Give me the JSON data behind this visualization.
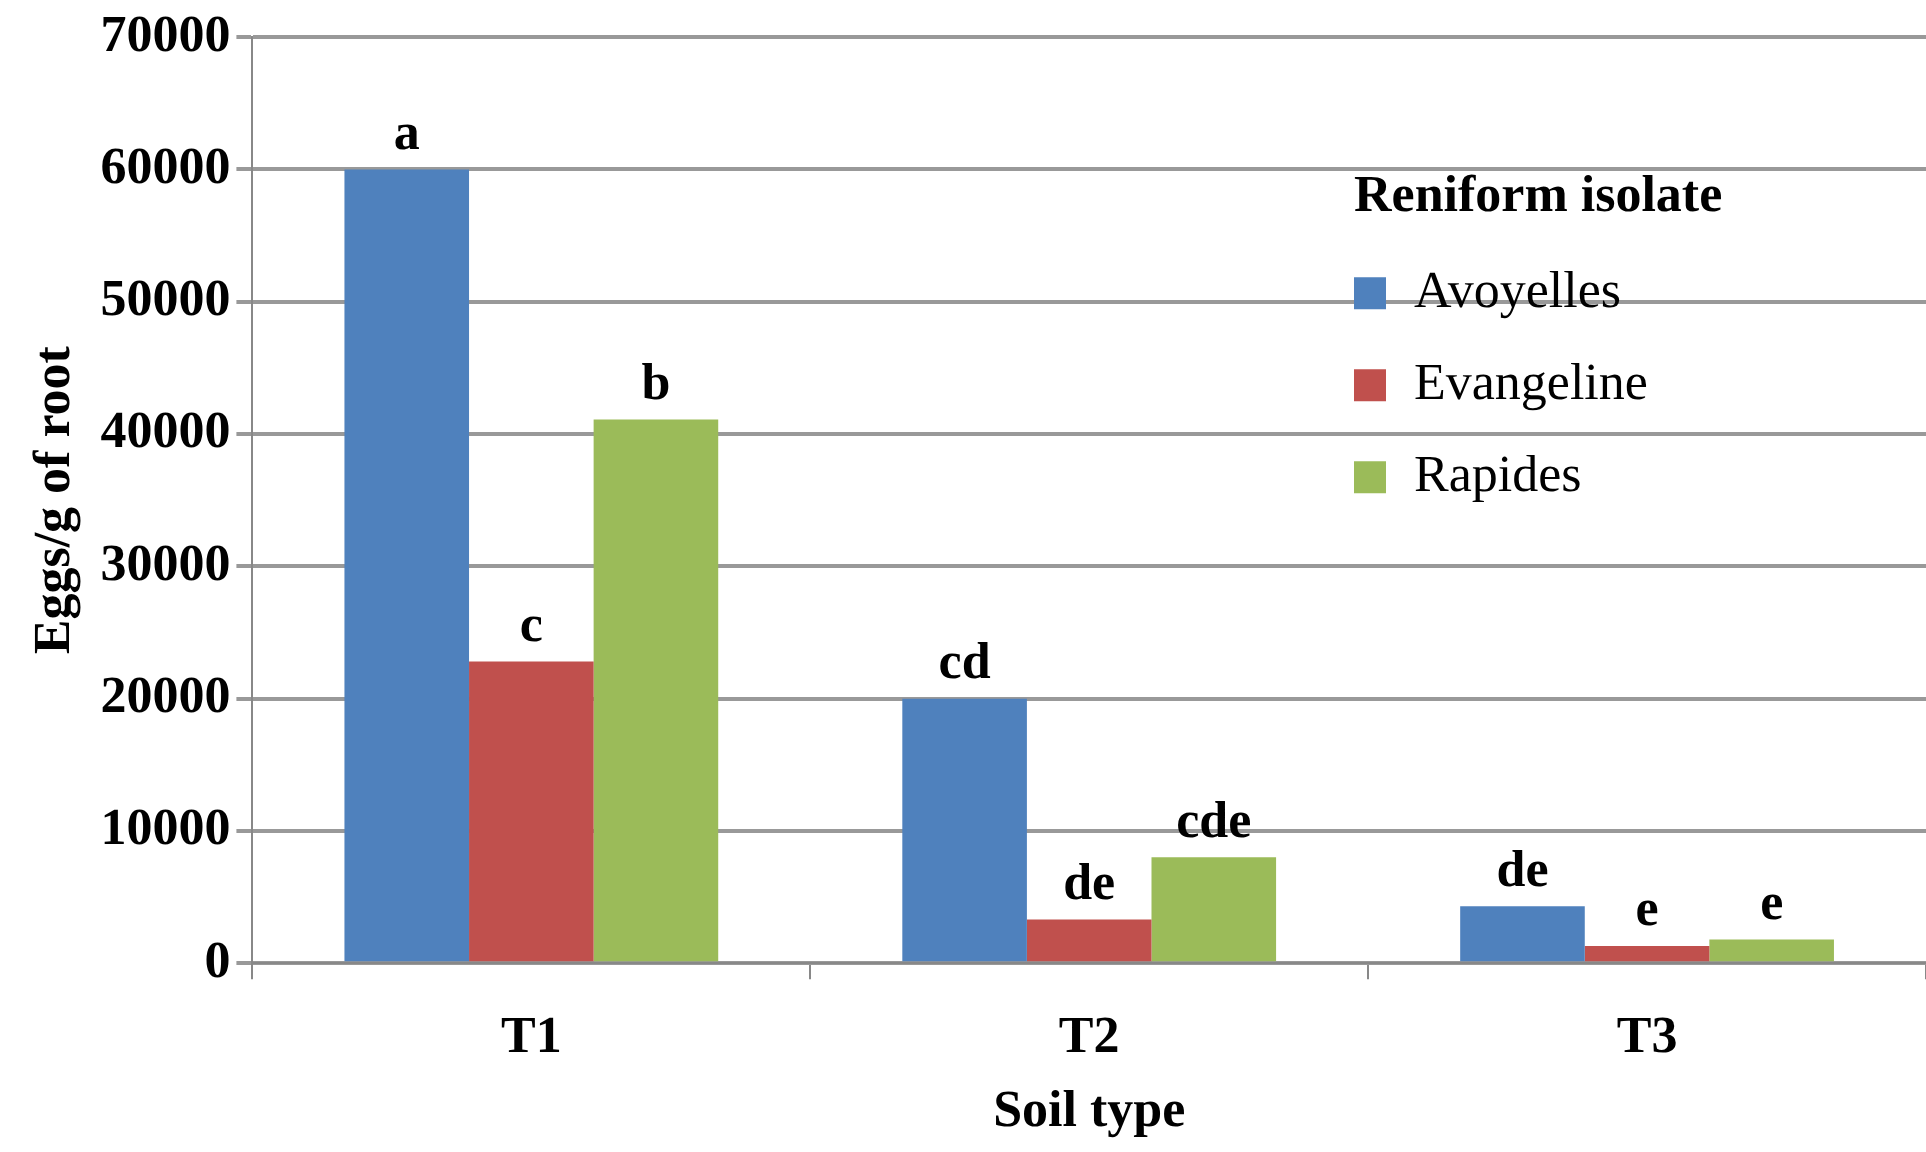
{
  "chart_data": {
    "type": "bar",
    "xlabel": "Soil type",
    "ylabel": "Eggs/g of root",
    "legend_title": "Reniform isolate",
    "categories": [
      "T1",
      "T2",
      "T3"
    ],
    "series": [
      {
        "name": "Avoyelles",
        "color": "#4f81bd",
        "values": [
          60000,
          20000,
          4300
        ],
        "value_labels": [
          "a",
          "cd",
          "de"
        ]
      },
      {
        "name": "Evangeline",
        "color": "#c0504d",
        "values": [
          22800,
          3300,
          1300
        ],
        "value_labels": [
          "c",
          "de",
          "e"
        ]
      },
      {
        "name": "Rapides",
        "color": "#9bbb59",
        "values": [
          41100,
          8000,
          1800
        ],
        "value_labels": [
          "b",
          "cde",
          "e"
        ]
      }
    ],
    "ylim": [
      0,
      70000
    ],
    "yticks": [
      0,
      10000,
      20000,
      30000,
      40000,
      50000,
      60000,
      70000
    ],
    "grid": "y",
    "legend": "top right"
  }
}
